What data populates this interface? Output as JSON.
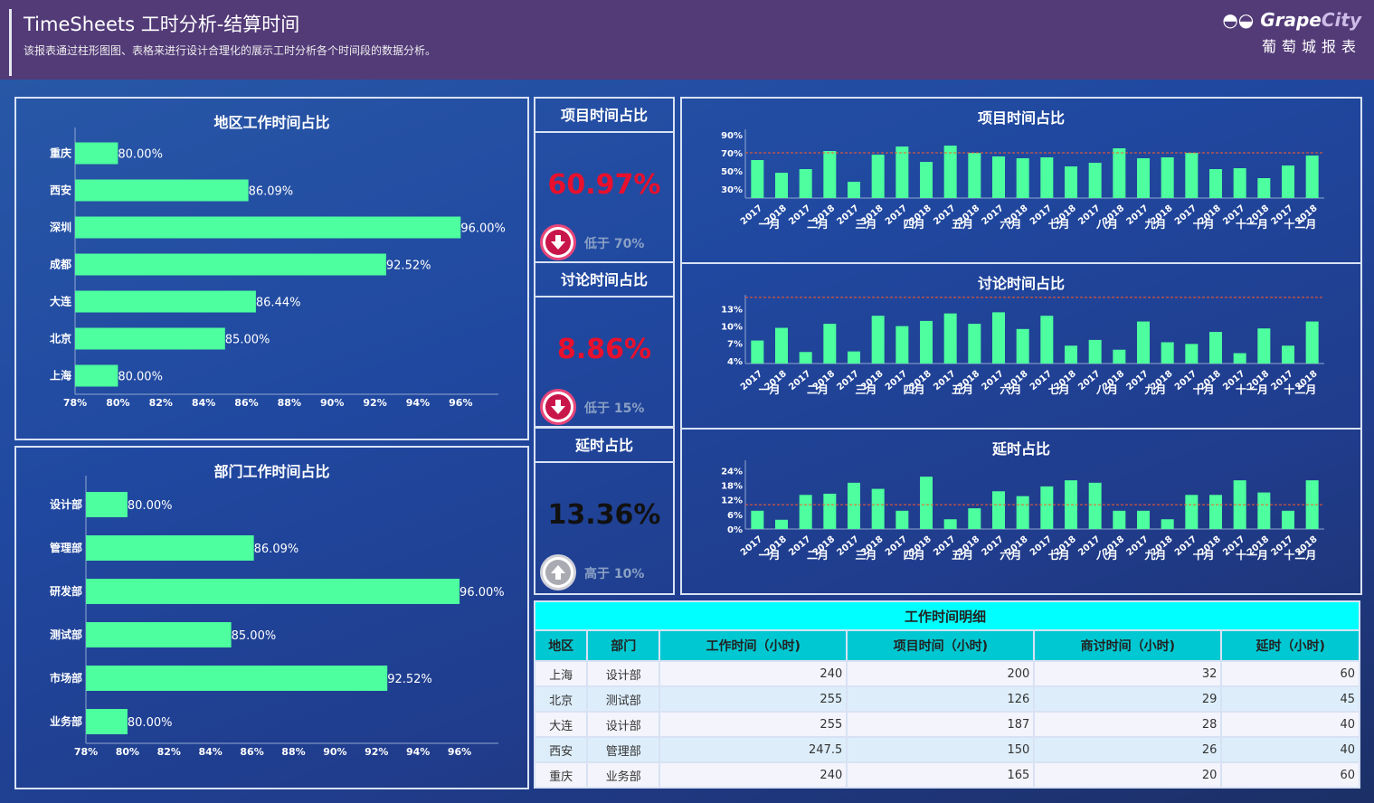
{
  "header": {
    "title": "TimeSheets 工时分析-结算时间",
    "subtitle": "该报表通过柱形图图、表格来进行设计合理化的展示工时分析各个时间段的数据分析。",
    "logo_text_a": "Grape",
    "logo_text_b": "City",
    "logo_cn": "葡萄城报表"
  },
  "kpis": [
    {
      "title": "项目时间占比",
      "value": "60.97%",
      "note": "低于 70%",
      "direction": "down",
      "value_color": "#e8102c"
    },
    {
      "title": "讨论时间占比",
      "value": "8.86%",
      "note": "低于 15%",
      "direction": "down",
      "value_color": "#e8102c"
    },
    {
      "title": "延时占比",
      "value": "13.36%",
      "note": "高于 10%",
      "direction": "up",
      "value_color": "#111111"
    }
  ],
  "chart_data": [
    {
      "id": "region",
      "type": "bar",
      "orientation": "horizontal",
      "title": "地区工作时间占比",
      "categories": [
        "重庆",
        "西安",
        "深圳",
        "成都",
        "大连",
        "北京",
        "上海"
      ],
      "values": [
        80.0,
        86.09,
        96.0,
        92.52,
        86.44,
        85.0,
        80.0
      ],
      "labels": [
        "80.00%",
        "86.09%",
        "96.00%",
        "92.52%",
        "86.44%",
        "85.00%",
        "80.00%"
      ],
      "xlim": [
        78,
        97
      ],
      "xticks": [
        "78%",
        "80%",
        "82%",
        "84%",
        "86%",
        "88%",
        "90%",
        "92%",
        "94%",
        "96%"
      ],
      "color": "#4dff9e"
    },
    {
      "id": "dept",
      "type": "bar",
      "orientation": "horizontal",
      "title": "部门工作时间占比",
      "categories": [
        "设计部",
        "管理部",
        "研发部",
        "测试部",
        "市场部",
        "业务部"
      ],
      "values": [
        80.0,
        86.09,
        96.0,
        85.0,
        92.52,
        80.0
      ],
      "labels": [
        "80.00%",
        "86.09%",
        "96.00%",
        "85.00%",
        "92.52%",
        "80.00%"
      ],
      "xlim": [
        78,
        97
      ],
      "xticks": [
        "78%",
        "80%",
        "82%",
        "84%",
        "86%",
        "88%",
        "90%",
        "92%",
        "94%",
        "96%"
      ],
      "color": "#4dff9e"
    },
    {
      "id": "project",
      "type": "bar",
      "title": "项目时间占比",
      "months": [
        "一月",
        "二月",
        "三月",
        "四月",
        "五月",
        "六月",
        "七月",
        "八月",
        "九月",
        "十月",
        "十一月",
        "十二月"
      ],
      "years": [
        "2017",
        "2018"
      ],
      "values": [
        62,
        48,
        52,
        72,
        38,
        68,
        77,
        60,
        78,
        70,
        66,
        64,
        65,
        55,
        59,
        75,
        64,
        65,
        70,
        52,
        53,
        42,
        56,
        67
      ],
      "ylim": [
        20,
        90
      ],
      "yticks": [
        30,
        50,
        70,
        90
      ],
      "ytick_labels": [
        "30%",
        "50%",
        "70%",
        "90%"
      ],
      "threshold": 70,
      "color": "#4dff9e"
    },
    {
      "id": "discussion",
      "type": "bar",
      "title": "讨论时间占比",
      "months": [
        "一月",
        "二月",
        "三月",
        "四月",
        "五月",
        "六月",
        "七月",
        "八月",
        "九月",
        "十月",
        "十一月",
        "十二月"
      ],
      "years": [
        "2017",
        "2018"
      ],
      "values": [
        7.5,
        9.7,
        5.5,
        10.4,
        5.6,
        11.8,
        10.0,
        10.9,
        12.2,
        10.4,
        12.4,
        9.5,
        11.8,
        6.6,
        7.6,
        5.9,
        10.8,
        7.2,
        6.9,
        9.0,
        5.3,
        9.6,
        6.6,
        10.8
      ],
      "ylim": [
        3.5,
        14.5
      ],
      "yticks": [
        4,
        7,
        10,
        13
      ],
      "ytick_labels": [
        "4%",
        "7%",
        "10%",
        "13%"
      ],
      "threshold": 15,
      "color": "#4dff9e"
    },
    {
      "id": "delay",
      "type": "bar",
      "title": "延时占比",
      "months": [
        "一月",
        "二月",
        "三月",
        "四月",
        "五月",
        "六月",
        "七月",
        "八月",
        "九月",
        "十月",
        "十一月",
        "十二月"
      ],
      "years": [
        "2017",
        "2018"
      ],
      "values": [
        7.5,
        3.8,
        14,
        14.5,
        19,
        16.5,
        7.5,
        21.5,
        4,
        8.5,
        15.5,
        13.5,
        17.5,
        20,
        19,
        7.5,
        7.5,
        4,
        14,
        14,
        20,
        15,
        7.5,
        20
      ],
      "ylim": [
        0,
        26
      ],
      "yticks": [
        0,
        6,
        12,
        18,
        24
      ],
      "ytick_labels": [
        "0%",
        "6%",
        "12%",
        "18%",
        "24%"
      ],
      "threshold": 10,
      "color": "#4dff9e"
    }
  ],
  "table": {
    "caption": "工作时间明细",
    "columns": [
      "地区",
      "部门",
      "工作时间（小时)",
      "项目时间（小时)",
      "商讨时间（小时)",
      "延时（小时)"
    ],
    "rows": [
      [
        "上海",
        "设计部",
        "240",
        "200",
        "32",
        "60"
      ],
      [
        "北京",
        "测试部",
        "255",
        "126",
        "29",
        "45"
      ],
      [
        "大连",
        "设计部",
        "255",
        "187",
        "28",
        "40"
      ],
      [
        "西安",
        "管理部",
        "247.5",
        "150",
        "26",
        "40"
      ],
      [
        "重庆",
        "业务部",
        "240",
        "165",
        "20",
        "60"
      ]
    ]
  }
}
